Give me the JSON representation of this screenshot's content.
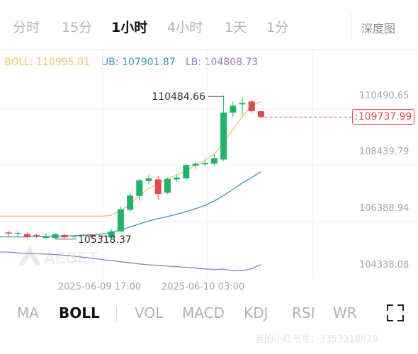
{
  "timeframes": [
    "分时",
    "15分",
    "1小时",
    "4小时",
    "1天",
    "1分"
  ],
  "active_timeframe": "1小时",
  "depth_label": "深度图",
  "boll_legend": {
    "boll": "BOLL: 110995.01",
    "ub": "UB: 107901.87",
    "lb": "LB: 104808.73"
  },
  "price_axis": [
    "110490.65",
    "108439.79",
    "106388.94",
    "104338.08"
  ],
  "time_axis": [
    "2025-06-09 17:00",
    "2025-06-10 03:00"
  ],
  "current_price": ":109737.99",
  "annotations": {
    "high": "110484.66",
    "low": "105318.37"
  },
  "indicators": [
    "MA",
    "BOLL",
    "VOL",
    "MACD",
    "KDJ",
    "RSI",
    "WR"
  ],
  "active_indicator": "BOLL",
  "watermark": {
    "logo_text": "AEGET",
    "footer": "我的小红书号：3353318828"
  },
  "colors": {
    "up": "#21b36a",
    "down": "#e04b50",
    "boll_mid": "#f0c46a",
    "upper_band": "#3a96b9",
    "lower_band": "#9b7bc1",
    "ub_text": "#3a96b9",
    "lb_text": "#9b7bc1",
    "boll_text": "#f0c46a"
  },
  "chart_data": {
    "type": "candlestick",
    "y_axis_ticks": [
      110490.65,
      108439.79,
      106388.94,
      104338.08
    ],
    "candles": [
      {
        "o": 105560,
        "h": 105600,
        "l": 105400,
        "c": 105520
      },
      {
        "o": 105530,
        "h": 105620,
        "l": 105420,
        "c": 105540
      },
      {
        "o": 105500,
        "h": 105560,
        "l": 105350,
        "c": 105400
      },
      {
        "o": 105470,
        "h": 105510,
        "l": 105360,
        "c": 105440
      },
      {
        "o": 105360,
        "h": 105520,
        "l": 105330,
        "c": 105430
      },
      {
        "o": 105360,
        "h": 105530,
        "l": 105318.37,
        "c": 105500
      },
      {
        "o": 105470,
        "h": 105500,
        "l": 105360,
        "c": 105380
      },
      {
        "o": 105400,
        "h": 105460,
        "l": 105360,
        "c": 105430
      },
      {
        "o": 105480,
        "h": 105520,
        "l": 105410,
        "c": 105480
      },
      {
        "o": 105470,
        "h": 105490,
        "l": 105380,
        "c": 105400
      },
      {
        "o": 105430,
        "h": 105470,
        "l": 105340,
        "c": 105400
      },
      {
        "o": 105380,
        "h": 105680,
        "l": 105360,
        "c": 105600
      },
      {
        "o": 105600,
        "h": 106500,
        "l": 105580,
        "c": 106400
      },
      {
        "o": 106380,
        "h": 107000,
        "l": 106300,
        "c": 106900
      },
      {
        "o": 106880,
        "h": 107500,
        "l": 106700,
        "c": 107450
      },
      {
        "o": 107420,
        "h": 107650,
        "l": 107300,
        "c": 107520
      },
      {
        "o": 107480,
        "h": 107600,
        "l": 106750,
        "c": 106950
      },
      {
        "o": 107000,
        "h": 107550,
        "l": 106950,
        "c": 107500
      },
      {
        "o": 107480,
        "h": 107650,
        "l": 107400,
        "c": 107550
      },
      {
        "o": 107520,
        "h": 108050,
        "l": 107450,
        "c": 108000
      },
      {
        "o": 107980,
        "h": 108100,
        "l": 107850,
        "c": 108050
      },
      {
        "o": 108030,
        "h": 108200,
        "l": 107960,
        "c": 108080
      },
      {
        "o": 108050,
        "h": 108400,
        "l": 107980,
        "c": 108250
      },
      {
        "o": 108200,
        "h": 110484.66,
        "l": 108150,
        "c": 109900
      },
      {
        "o": 109900,
        "h": 110300,
        "l": 109750,
        "c": 110150
      },
      {
        "o": 110200,
        "h": 110450,
        "l": 109800,
        "c": 110250
      },
      {
        "o": 110300,
        "h": 110350,
        "l": 109900,
        "c": 109950
      },
      {
        "o": 109950,
        "h": 110000,
        "l": 109700,
        "c": 109737.99
      }
    ],
    "boll_mid": [
      106150,
      106150,
      106150,
      106150,
      106150,
      106150,
      106150,
      106150,
      106150,
      106150,
      106150,
      106180,
      106350,
      106580,
      106900,
      107150,
      107330,
      107500,
      107650,
      107800,
      108000,
      108180,
      108400,
      108800,
      109300,
      109750,
      110150,
      110300
    ],
    "upper_band": [
      105400,
      105400,
      105400,
      105410,
      105410,
      105420,
      105430,
      105440,
      105460,
      105480,
      105500,
      105560,
      105650,
      105760,
      105870,
      105980,
      106060,
      106140,
      106220,
      106320,
      106420,
      106540,
      106700,
      106900,
      107120,
      107350,
      107550,
      107760
    ],
    "lower_band": [
      104850,
      104820,
      104800,
      104790,
      104780,
      104760,
      104730,
      104700,
      104660,
      104620,
      104580,
      104540,
      104500,
      104460,
      104420,
      104390,
      104370,
      104340,
      104320,
      104300,
      104270,
      104240,
      104220,
      104230,
      104170,
      104180,
      104250,
      104400
    ],
    "current_price": 109737.99,
    "x_ticks": [
      "2025-06-09 17:00",
      "2025-06-10 03:00"
    ]
  }
}
